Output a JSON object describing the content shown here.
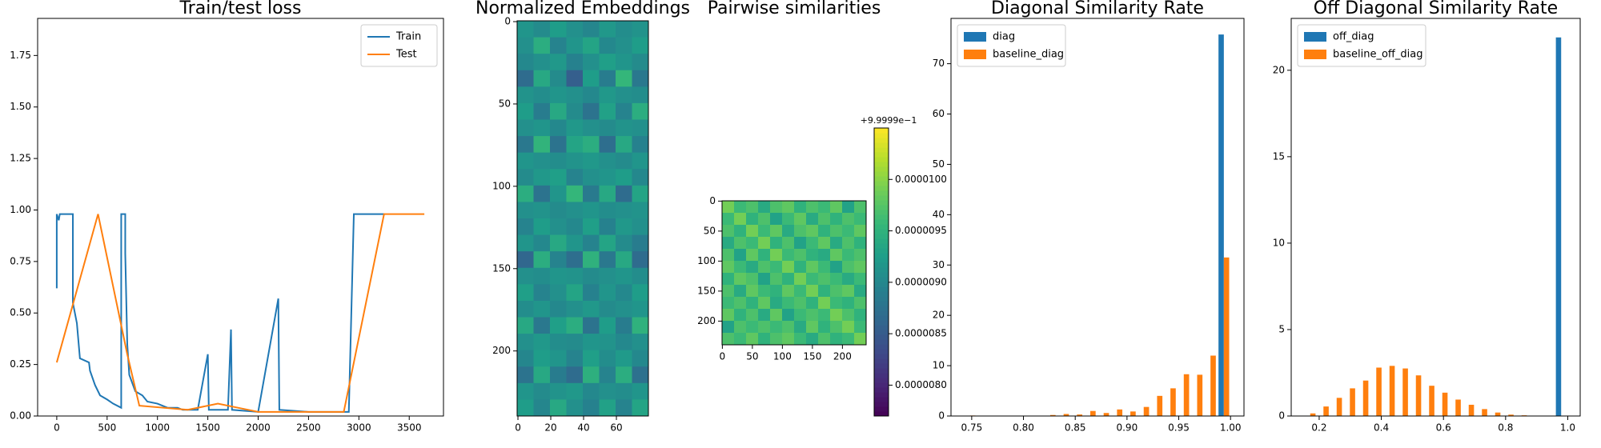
{
  "chart_data": [
    {
      "type": "line",
      "title": "Train/test loss",
      "legend": "upper right",
      "xlim": [
        -190,
        3840
      ],
      "ylim": [
        0,
        1.93
      ],
      "xticks": [
        0,
        500,
        1000,
        1500,
        2000,
        2500,
        3000,
        3500
      ],
      "yticks": [
        {
          "value": 0,
          "label": "0.00"
        },
        {
          "value": 0.25,
          "label": "0.25"
        },
        {
          "value": 0.5,
          "label": "0.50"
        },
        {
          "value": 0.75,
          "label": "0.75"
        },
        {
          "value": 1,
          "label": "1.00"
        },
        {
          "value": 1.25,
          "label": "1.25"
        },
        {
          "value": 1.5,
          "label": "1.50"
        },
        {
          "value": 1.75,
          "label": "1.75"
        }
      ],
      "series": [
        {
          "name": "Train",
          "color": "#1f77b4",
          "x": [
            0,
            0,
            20,
            30,
            160,
            160,
            200,
            230,
            320,
            330,
            380,
            430,
            500,
            560,
            640,
            640,
            680,
            680,
            700,
            720,
            780,
            850,
            900,
            1000,
            1100,
            1200,
            1250,
            1400,
            1500,
            1510,
            1700,
            1730,
            1740,
            2000,
            2200,
            2210,
            2500,
            2900,
            2950,
            3250
          ],
          "values": [
            0.62,
            0.98,
            0.95,
            0.98,
            0.98,
            0.55,
            0.45,
            0.28,
            0.26,
            0.22,
            0.15,
            0.1,
            0.08,
            0.06,
            0.04,
            0.98,
            0.98,
            0.79,
            0.35,
            0.2,
            0.12,
            0.1,
            0.07,
            0.06,
            0.04,
            0.04,
            0.03,
            0.03,
            0.3,
            0.03,
            0.03,
            0.42,
            0.03,
            0.02,
            0.57,
            0.03,
            0.02,
            0.02,
            0.98,
            0.98
          ]
        },
        {
          "name": "Test",
          "color": "#ff7f0e",
          "x": [
            0,
            410,
            700,
            820,
            1300,
            1600,
            1800,
            2000,
            2850,
            3250,
            3650
          ],
          "values": [
            0.26,
            0.98,
            0.3,
            0.05,
            0.03,
            0.06,
            0.04,
            0.02,
            0.02,
            0.98,
            0.98
          ]
        }
      ]
    },
    {
      "type": "heatmap",
      "title": "Normalized Embeddings",
      "clim": [
        0,
        1
      ],
      "xlim": [
        -0.5,
        79.5
      ],
      "ylim": [
        239.5,
        -0.5
      ],
      "xticks": [
        0,
        20,
        40,
        60
      ],
      "yticks": [
        0,
        50,
        100,
        150,
        200
      ],
      "values": [
        [
          0.52,
          0.48,
          0.55,
          0.5,
          0.46,
          0.53,
          0.49,
          0.51
        ],
        [
          0.5,
          0.62,
          0.45,
          0.52,
          0.58,
          0.47,
          0.5,
          0.55
        ],
        [
          0.47,
          0.5,
          0.53,
          0.44,
          0.5,
          0.56,
          0.52,
          0.48
        ],
        [
          0.35,
          0.6,
          0.48,
          0.3,
          0.55,
          0.42,
          0.66,
          0.4
        ],
        [
          0.51,
          0.49,
          0.52,
          0.5,
          0.47,
          0.53,
          0.5,
          0.49
        ],
        [
          0.55,
          0.42,
          0.6,
          0.48,
          0.38,
          0.57,
          0.45,
          0.62
        ],
        [
          0.5,
          0.52,
          0.47,
          0.53,
          0.5,
          0.48,
          0.51,
          0.5
        ],
        [
          0.4,
          0.65,
          0.38,
          0.58,
          0.62,
          0.36,
          0.6,
          0.44
        ],
        [
          0.52,
          0.5,
          0.49,
          0.51,
          0.53,
          0.5,
          0.48,
          0.52
        ],
        [
          0.48,
          0.53,
          0.56,
          0.45,
          0.5,
          0.52,
          0.55,
          0.47
        ],
        [
          0.62,
          0.38,
          0.52,
          0.66,
          0.41,
          0.6,
          0.35,
          0.58
        ],
        [
          0.5,
          0.51,
          0.48,
          0.5,
          0.52,
          0.49,
          0.5,
          0.51
        ],
        [
          0.45,
          0.55,
          0.5,
          0.47,
          0.56,
          0.44,
          0.53,
          0.5
        ],
        [
          0.52,
          0.47,
          0.6,
          0.52,
          0.45,
          0.58,
          0.48,
          0.42
        ],
        [
          0.33,
          0.62,
          0.45,
          0.36,
          0.64,
          0.4,
          0.6,
          0.35
        ],
        [
          0.5,
          0.49,
          0.52,
          0.51,
          0.48,
          0.5,
          0.52,
          0.49
        ],
        [
          0.56,
          0.45,
          0.5,
          0.58,
          0.44,
          0.52,
          0.47,
          0.55
        ],
        [
          0.49,
          0.52,
          0.47,
          0.5,
          0.53,
          0.48,
          0.5,
          0.52
        ],
        [
          0.6,
          0.4,
          0.56,
          0.62,
          0.38,
          0.55,
          0.42,
          0.64
        ],
        [
          0.5,
          0.53,
          0.49,
          0.48,
          0.52,
          0.51,
          0.47,
          0.5
        ],
        [
          0.46,
          0.55,
          0.52,
          0.45,
          0.56,
          0.49,
          0.54,
          0.47
        ],
        [
          0.38,
          0.6,
          0.42,
          0.35,
          0.63,
          0.45,
          0.62,
          0.37
        ],
        [
          0.52,
          0.48,
          0.51,
          0.53,
          0.47,
          0.5,
          0.49,
          0.52
        ],
        [
          0.55,
          0.46,
          0.6,
          0.5,
          0.44,
          0.57,
          0.45,
          0.58
        ]
      ]
    },
    {
      "type": "heatmap",
      "title": "Pairwise similarities",
      "xlim": [
        -0.5,
        239.5
      ],
      "ylim": [
        239.5,
        -0.5
      ],
      "xticks": [
        0,
        50,
        100,
        150,
        200
      ],
      "yticks": [
        0,
        50,
        100,
        150,
        200
      ],
      "clim": [
        7.7e-06,
        1.05e-05
      ],
      "colorbar": {
        "offset_label": "+9.9999e−1",
        "ticks": [
          {
            "value": 8e-06,
            "label": "0.0000080"
          },
          {
            "value": 8.5e-06,
            "label": "0.0000085"
          },
          {
            "value": 9e-06,
            "label": "0.0000090"
          },
          {
            "value": 9.5e-06,
            "label": "0.0000095"
          },
          {
            "value": 1e-05,
            "label": "0.0000100"
          }
        ]
      },
      "values": [
        [
          9.9e-06,
          9.6e-06,
          9.7e-06,
          9.4e-06,
          9.7e-06,
          9.8e-06,
          9.5e-06,
          9.7e-06,
          9.6e-06,
          9.8e-06,
          9.3e-06,
          9.7e-06
        ],
        [
          9.6e-06,
          9.9e-06,
          9.5e-06,
          9.7e-06,
          9.3e-06,
          9.6e-06,
          9.8e-06,
          9.4e-06,
          9.7e-06,
          9.5e-06,
          9.7e-06,
          9.6e-06
        ],
        [
          9.7e-06,
          9.5e-06,
          9.9e-06,
          9.6e-06,
          9.8e-06,
          9.4e-06,
          9.7e-06,
          9.8e-06,
          9.5e-06,
          9.7e-06,
          9.6e-06,
          9.8e-06
        ],
        [
          9.4e-06,
          9.7e-06,
          9.6e-06,
          9.9e-06,
          9.5e-06,
          9.7e-06,
          9.3e-06,
          9.6e-06,
          9.8e-06,
          9.4e-06,
          9.7e-06,
          9.5e-06
        ],
        [
          9.7e-06,
          9.3e-06,
          9.8e-06,
          9.5e-06,
          9.9e-06,
          9.6e-06,
          9.7e-06,
          9.5e-06,
          9.4e-06,
          9.8e-06,
          9.6e-06,
          9.7e-06
        ],
        [
          9.8e-06,
          9.6e-06,
          9.4e-06,
          9.7e-06,
          9.6e-06,
          9.9e-06,
          9.5e-06,
          9.8e-06,
          9.6e-06,
          9.3e-06,
          9.7e-06,
          9.8e-06
        ],
        [
          9.5e-06,
          9.8e-06,
          9.7e-06,
          9.3e-06,
          9.7e-06,
          9.5e-06,
          9.9e-06,
          9.6e-06,
          9.7e-06,
          9.6e-06,
          9.4e-06,
          9.6e-06
        ],
        [
          9.7e-06,
          9.4e-06,
          9.8e-06,
          9.6e-06,
          9.5e-06,
          9.8e-06,
          9.6e-06,
          9.9e-06,
          9.5e-06,
          9.7e-06,
          9.8e-06,
          9.4e-06
        ],
        [
          9.6e-06,
          9.7e-06,
          9.5e-06,
          9.8e-06,
          9.4e-06,
          9.6e-06,
          9.7e-06,
          9.5e-06,
          9.9e-06,
          9.6e-06,
          9.5e-06,
          9.7e-06
        ],
        [
          9.8e-06,
          9.5e-06,
          9.7e-06,
          9.4e-06,
          9.8e-06,
          9.3e-06,
          9.6e-06,
          9.7e-06,
          9.6e-06,
          9.9e-06,
          9.7e-06,
          9.5e-06
        ],
        [
          9.3e-06,
          9.7e-06,
          9.6e-06,
          9.7e-06,
          9.6e-06,
          9.7e-06,
          9.4e-06,
          9.8e-06,
          9.5e-06,
          9.7e-06,
          9.9e-06,
          9.6e-06
        ],
        [
          9.7e-06,
          9.6e-06,
          9.8e-06,
          9.5e-06,
          9.7e-06,
          9.8e-06,
          9.6e-06,
          9.4e-06,
          9.7e-06,
          9.5e-06,
          9.6e-06,
          9.9e-06
        ]
      ]
    },
    {
      "type": "histogram",
      "title": "Diagonal Similarity Rate",
      "legend": "upper left",
      "xlim": [
        0.73,
        1.013
      ],
      "ylim": [
        0,
        79
      ],
      "xticks": [
        {
          "value": 0.75,
          "label": "0.75"
        },
        {
          "value": 0.8,
          "label": "0.80"
        },
        {
          "value": 0.85,
          "label": "0.85"
        },
        {
          "value": 0.9,
          "label": "0.90"
        },
        {
          "value": 0.95,
          "label": "0.95"
        },
        {
          "value": 1,
          "label": "1.00"
        }
      ],
      "yticks": [
        0,
        10,
        20,
        30,
        40,
        50,
        60,
        70
      ],
      "bins": [
        0.742,
        0.7549,
        0.7678,
        0.7807,
        0.7936,
        0.8065,
        0.8194,
        0.8323,
        0.8452,
        0.8581,
        0.871,
        0.8839,
        0.8968,
        0.9097,
        0.9226,
        0.9355,
        0.9484,
        0.9613,
        0.9742,
        0.9871,
        1.0
      ],
      "series": [
        {
          "name": "diag",
          "color": "#1f77b4",
          "values": [
            0,
            0,
            0,
            0,
            0,
            0,
            0,
            0,
            0,
            0,
            0,
            0,
            0,
            0,
            0,
            0,
            0,
            0,
            0,
            75.8
          ]
        },
        {
          "name": "baseline_diag",
          "color": "#ff7f0e",
          "values": [
            0.1,
            0,
            0,
            0,
            0,
            0,
            0.2,
            0.4,
            0.3,
            1,
            0.6,
            1.3,
            0.9,
            1.8,
            4,
            5.5,
            8.3,
            8.2,
            12,
            31.5
          ]
        }
      ]
    },
    {
      "type": "histogram",
      "title": "Off Diagonal Similarity Rate",
      "legend": "upper left",
      "xlim": [
        0.11,
        1.04
      ],
      "ylim": [
        0,
        23
      ],
      "xticks": [
        0.2,
        0.4,
        0.6,
        0.8,
        {
          "value": 1,
          "label": "1.0"
        }
      ],
      "yticks": [
        0,
        5,
        10,
        15,
        20
      ],
      "bins": [
        0.15,
        0.1925,
        0.235,
        0.2775,
        0.32,
        0.3625,
        0.405,
        0.4475,
        0.49,
        0.5325,
        0.575,
        0.6175,
        0.66,
        0.7025,
        0.745,
        0.7875,
        0.83,
        0.8725,
        0.915,
        0.9575,
        1.0
      ],
      "series": [
        {
          "name": "off_diag",
          "color": "#1f77b4",
          "values": [
            0,
            0,
            0,
            0,
            0,
            0,
            0,
            0,
            0,
            0,
            0,
            0,
            0,
            0,
            0,
            0,
            0,
            0,
            0,
            21.9
          ]
        },
        {
          "name": "baseline_off_diag",
          "color": "#ff7f0e",
          "values": [
            0.15,
            0.55,
            1.05,
            1.6,
            2.05,
            2.8,
            2.9,
            2.75,
            2.35,
            1.75,
            1.35,
            0.95,
            0.65,
            0.4,
            0.2,
            0.08,
            0.04,
            0.02,
            0.01,
            0
          ]
        }
      ]
    }
  ]
}
